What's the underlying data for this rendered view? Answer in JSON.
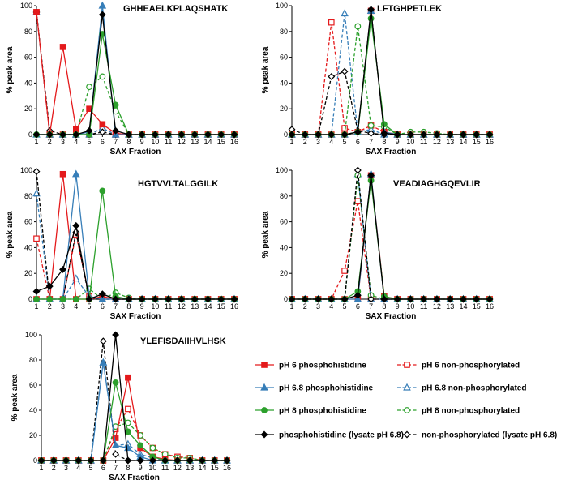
{
  "styles": {
    "ph6_phos": {
      "color": "#e41a1c",
      "marker": "square",
      "filled": true,
      "dashed": false
    },
    "ph68_phos": {
      "color": "#377eb8",
      "marker": "triangle",
      "filled": true,
      "dashed": false
    },
    "ph8_phos": {
      "color": "#2ca02c",
      "marker": "circle",
      "filled": true,
      "dashed": false
    },
    "lys_phos": {
      "color": "#000000",
      "marker": "diamond",
      "filled": true,
      "dashed": false
    },
    "ph6_non": {
      "color": "#e41a1c",
      "marker": "square",
      "filled": false,
      "dashed": true
    },
    "ph68_non": {
      "color": "#377eb8",
      "marker": "triangle",
      "filled": false,
      "dashed": true
    },
    "ph8_non": {
      "color": "#2ca02c",
      "marker": "circle",
      "filled": false,
      "dashed": true
    },
    "lys_non": {
      "color": "#000000",
      "marker": "diamond",
      "filled": false,
      "dashed": true
    }
  },
  "legend": [
    {
      "key": "ph6_phos",
      "label": "pH 6 phosphohistidine"
    },
    {
      "key": "ph6_non",
      "label": "pH 6 non-phosphorylated"
    },
    {
      "key": "ph68_phos",
      "label": "pH 6.8 phosphohistidine"
    },
    {
      "key": "ph68_non",
      "label": "pH 6.8 non-phosphorylated"
    },
    {
      "key": "ph8_phos",
      "label": "pH 8 phosphohistidine"
    },
    {
      "key": "ph8_non",
      "label": "pH 8 non-phosphorylated"
    },
    {
      "key": "lys_phos",
      "label": "phosphohistidine (lysate pH 6.8)"
    },
    {
      "key": "lys_non",
      "label": "non-phosphorylated (lysate pH 6.8)"
    }
  ],
  "chart_data": [
    {
      "type": "line",
      "title": "GHHEAELKPLAQSHATK",
      "xlabel": "SAX Fraction",
      "ylabel": "% peak area",
      "x": [
        "1",
        "2",
        "3",
        "4",
        "5",
        "6",
        "7",
        "8",
        "9",
        "10",
        "11",
        "12",
        "13",
        "14",
        "15",
        "16"
      ],
      "ylim": [
        0,
        100
      ],
      "yticks": [
        "0",
        "20",
        "40",
        "60",
        "80",
        "100"
      ],
      "series": [
        {
          "key": "ph6_non",
          "name": "pH 6 non-phosphorylated",
          "values": [
            95,
            0,
            0,
            0,
            0,
            5,
            0,
            0,
            0,
            0,
            0,
            0,
            0,
            0,
            0,
            0
          ]
        },
        {
          "key": "ph68_non",
          "name": "pH 6.8 non-phosphorylated",
          "values": [
            95,
            0,
            0,
            0,
            0,
            5,
            0,
            0,
            0,
            0,
            0,
            0,
            0,
            0,
            0,
            0
          ]
        },
        {
          "key": "ph8_non",
          "name": "pH 8 non-phosphorylated",
          "values": [
            0,
            0,
            0,
            0,
            37,
            45,
            18,
            0,
            0,
            0,
            0,
            0,
            0,
            0,
            0,
            0
          ]
        },
        {
          "key": "lys_non",
          "name": "non-phosphorylated (lysate pH 6.8)",
          "values": [
            95,
            3,
            0,
            0,
            0,
            2,
            0,
            0,
            0,
            0,
            0,
            0,
            0,
            0,
            0,
            0
          ]
        },
        {
          "key": "ph6_phos",
          "name": "pH 6 phosphohistidine",
          "values": [
            95,
            0,
            68,
            4,
            20,
            8,
            1,
            0,
            0,
            0,
            0,
            0,
            0,
            0,
            0,
            0
          ]
        },
        {
          "key": "ph68_phos",
          "name": "pH 6.8 phosphohistidine",
          "values": [
            0,
            0,
            0,
            0,
            2,
            100,
            0,
            0,
            0,
            0,
            0,
            0,
            0,
            0,
            0,
            0
          ]
        },
        {
          "key": "ph8_phos",
          "name": "pH 8 phosphohistidine",
          "values": [
            0,
            0,
            0,
            0,
            0,
            78,
            23,
            0,
            0,
            0,
            0,
            0,
            0,
            0,
            0,
            0
          ]
        },
        {
          "key": "lys_phos",
          "name": "phosphohistidine (lysate pH 6.8)",
          "values": [
            0,
            0,
            0,
            0,
            3,
            93,
            3,
            0,
            0,
            0,
            0,
            0,
            0,
            0,
            0,
            0
          ]
        }
      ]
    },
    {
      "type": "line",
      "title": "LFTGHPETLEK",
      "xlabel": "SAX Fraction",
      "ylabel": "% peak area",
      "x": [
        "1",
        "2",
        "3",
        "4",
        "5",
        "6",
        "7",
        "8",
        "9",
        "10",
        "11",
        "12",
        "13",
        "14",
        "15",
        "16"
      ],
      "ylim": [
        0,
        100
      ],
      "yticks": [
        "0",
        "20",
        "40",
        "60",
        "80",
        "100"
      ],
      "series": [
        {
          "key": "ph6_non",
          "name": "pH 6 non-phosphorylated",
          "values": [
            0,
            0,
            0,
            87,
            5,
            2,
            7,
            2,
            0,
            0,
            0,
            0,
            0,
            0,
            0,
            0
          ]
        },
        {
          "key": "ph68_non",
          "name": "pH 6.8 non-phosphorylated",
          "values": [
            0,
            0,
            0,
            0,
            94,
            2,
            4,
            0,
            0,
            0,
            0,
            0,
            0,
            0,
            0,
            0
          ]
        },
        {
          "key": "ph8_non",
          "name": "pH 8 non-phosphorylated",
          "values": [
            0,
            0,
            0,
            0,
            0,
            84,
            7,
            6,
            0,
            2,
            2,
            1,
            0,
            0,
            0,
            0
          ]
        },
        {
          "key": "lys_non",
          "name": "non-phosphorylated (lysate pH 6.8)",
          "values": [
            4,
            0,
            0,
            45,
            49,
            3,
            1,
            0,
            0,
            0,
            0,
            0,
            0,
            0,
            0,
            0
          ]
        },
        {
          "key": "ph6_phos",
          "name": "pH 6 phosphohistidine",
          "values": [
            0,
            0,
            0,
            0,
            0,
            2,
            96,
            2,
            0,
            0,
            0,
            0,
            0,
            0,
            0,
            0
          ]
        },
        {
          "key": "ph68_phos",
          "name": "pH 6.8 phosphohistidine",
          "values": [
            0,
            0,
            0,
            0,
            0,
            2,
            96,
            2,
            0,
            0,
            0,
            0,
            0,
            0,
            0,
            0
          ]
        },
        {
          "key": "ph8_phos",
          "name": "pH 8 phosphohistidine",
          "values": [
            0,
            0,
            0,
            0,
            0,
            2,
            90,
            8,
            0,
            0,
            0,
            0,
            0,
            0,
            0,
            0
          ]
        },
        {
          "key": "lys_phos",
          "name": "phosphohistidine (lysate pH 6.8)",
          "values": [
            0,
            0,
            0,
            0,
            0,
            2,
            97,
            1,
            0,
            0,
            0,
            0,
            0,
            0,
            0,
            0
          ]
        }
      ]
    },
    {
      "type": "line",
      "title": "HGTVVLTALGGILK",
      "xlabel": "SAX Fraction",
      "ylabel": "% peak area",
      "x": [
        "1",
        "2",
        "3",
        "4",
        "5",
        "6",
        "7",
        "8",
        "9",
        "10",
        "11",
        "12",
        "13",
        "14",
        "15",
        "16"
      ],
      "ylim": [
        0,
        100
      ],
      "yticks": [
        "0",
        "20",
        "40",
        "60",
        "80",
        "100"
      ],
      "series": [
        {
          "key": "ph6_non",
          "name": "pH 6 non-phosphorylated",
          "values": [
            47,
            0,
            0,
            50,
            2,
            0,
            0,
            0,
            0,
            0,
            0,
            0,
            0,
            0,
            0,
            0
          ]
        },
        {
          "key": "ph68_non",
          "name": "pH 6.8 non-phosphorylated",
          "values": [
            82,
            0,
            0,
            16,
            2,
            0,
            0,
            0,
            0,
            0,
            0,
            0,
            0,
            0,
            0,
            0
          ]
        },
        {
          "key": "ph8_non",
          "name": "pH 8 non-phosphorylated",
          "values": [
            0,
            0,
            0,
            0,
            8,
            0,
            5,
            1,
            0,
            0,
            0,
            0,
            0,
            0,
            0,
            0
          ]
        },
        {
          "key": "lys_non",
          "name": "non-phosphorylated (lysate pH 6.8)",
          "values": [
            99,
            0,
            0,
            52,
            0,
            0,
            0,
            0,
            0,
            0,
            0,
            0,
            0,
            0,
            0,
            0
          ]
        },
        {
          "key": "ph6_phos",
          "name": "pH 6 phosphohistidine",
          "values": [
            0,
            0,
            97,
            0,
            0,
            2,
            0,
            0,
            0,
            0,
            0,
            0,
            0,
            0,
            0,
            0
          ]
        },
        {
          "key": "ph68_phos",
          "name": "pH 6.8 phosphohistidine",
          "values": [
            0,
            0,
            0,
            97,
            2,
            0,
            0,
            0,
            0,
            0,
            0,
            0,
            0,
            0,
            0,
            0
          ]
        },
        {
          "key": "ph8_phos",
          "name": "pH 8 phosphohistidine",
          "values": [
            0,
            0,
            0,
            0,
            0,
            84,
            2,
            0,
            0,
            0,
            0,
            0,
            0,
            0,
            0,
            0
          ]
        },
        {
          "key": "lys_phos",
          "name": "phosphohistidine (lysate pH 6.8)",
          "values": [
            6,
            10,
            23,
            57,
            0,
            4,
            0,
            0,
            0,
            0,
            0,
            0,
            0,
            0,
            0,
            0
          ]
        }
      ]
    },
    {
      "type": "line",
      "title": "VEADIAGHGQEVLIR",
      "xlabel": "SAX Fraction",
      "ylabel": "% peak area",
      "x": [
        "1",
        "2",
        "3",
        "4",
        "5",
        "6",
        "7",
        "8",
        "9",
        "10",
        "11",
        "12",
        "13",
        "14",
        "15",
        "16"
      ],
      "ylim": [
        0,
        100
      ],
      "yticks": [
        "0",
        "20",
        "40",
        "60",
        "80",
        "100"
      ],
      "series": [
        {
          "key": "ph6_non",
          "name": "pH 6 non-phosphorylated",
          "values": [
            0,
            0,
            0,
            0,
            22,
            76,
            0,
            0,
            0,
            0,
            0,
            0,
            0,
            0,
            0,
            0
          ]
        },
        {
          "key": "ph68_non",
          "name": "pH 6.8 non-phosphorylated",
          "values": [
            0,
            0,
            0,
            0,
            0,
            97,
            0,
            0,
            0,
            0,
            0,
            0,
            0,
            0,
            0,
            0
          ]
        },
        {
          "key": "ph8_non",
          "name": "pH 8 non-phosphorylated",
          "values": [
            0,
            0,
            0,
            0,
            0,
            96,
            3,
            0,
            0,
            0,
            0,
            0,
            0,
            0,
            0,
            0
          ]
        },
        {
          "key": "lys_non",
          "name": "non-phosphorylated (lysate pH 6.8)",
          "values": [
            0,
            0,
            0,
            0,
            0,
            100,
            0,
            0,
            0,
            0,
            0,
            0,
            0,
            0,
            0,
            0
          ]
        },
        {
          "key": "ph6_phos",
          "name": "pH 6 phosphohistidine",
          "values": [
            0,
            0,
            0,
            0,
            0,
            0,
            96,
            2,
            0,
            0,
            0,
            0,
            0,
            0,
            0,
            0
          ]
        },
        {
          "key": "ph68_phos",
          "name": "pH 6.8 phosphohistidine",
          "values": [
            0,
            0,
            0,
            0,
            0,
            0,
            97,
            0,
            0,
            0,
            0,
            0,
            0,
            0,
            0,
            0
          ]
        },
        {
          "key": "ph8_phos",
          "name": "pH 8 phosphohistidine",
          "values": [
            0,
            0,
            0,
            0,
            0,
            6,
            92,
            2,
            0,
            0,
            0,
            0,
            0,
            0,
            0,
            0
          ]
        },
        {
          "key": "lys_phos",
          "name": "phosphohistidine (lysate pH 6.8)",
          "values": [
            0,
            0,
            0,
            0,
            0,
            3,
            96,
            0,
            0,
            0,
            0,
            0,
            0,
            0,
            0,
            0
          ]
        }
      ]
    },
    {
      "type": "line",
      "title": "YLEFISDAIIHVLHSK",
      "xlabel": "SAX Fraction",
      "ylabel": "% peak area",
      "x": [
        "1",
        "2",
        "3",
        "4",
        "5",
        "6",
        "7",
        "8",
        "9",
        "10",
        "11",
        "12",
        "13",
        "14",
        "15",
        "16"
      ],
      "ylim": [
        0,
        100
      ],
      "yticks": [
        "0",
        "20",
        "40",
        "60",
        "80",
        "100"
      ],
      "series": [
        {
          "key": "ph6_non",
          "name": "pH 6 non-phosphorylated",
          "values": [
            0,
            0,
            0,
            0,
            0,
            0,
            25,
            41,
            20,
            10,
            5,
            3,
            2,
            0,
            0,
            0
          ]
        },
        {
          "key": "ph68_non",
          "name": "pH 6.8 non-phosphorylated",
          "values": [
            0,
            0,
            0,
            0,
            0,
            78,
            12,
            13,
            5,
            2,
            0,
            0,
            0,
            0,
            0,
            0
          ]
        },
        {
          "key": "ph8_non",
          "name": "pH 8 non-phosphorylated",
          "values": [
            0,
            0,
            0,
            0,
            0,
            0,
            27,
            30,
            20,
            10,
            5,
            2,
            2,
            0,
            0,
            0
          ]
        },
        {
          "key": "lys_non",
          "name": "non-phosphorylated (lysate pH 6.8)",
          "values": [
            0,
            0,
            0,
            0,
            0,
            95,
            5,
            0,
            0,
            0,
            0,
            0,
            0,
            0,
            0,
            0
          ]
        },
        {
          "key": "ph6_phos",
          "name": "pH 6 phosphohistidine",
          "values": [
            0,
            0,
            0,
            0,
            0,
            0,
            18,
            66,
            10,
            3,
            1,
            0,
            0,
            0,
            0,
            0
          ]
        },
        {
          "key": "ph68_phos",
          "name": "pH 6.8 phosphohistidine",
          "values": [
            0,
            0,
            0,
            0,
            0,
            78,
            12,
            10,
            3,
            0,
            0,
            0,
            0,
            0,
            0,
            0
          ]
        },
        {
          "key": "ph8_phos",
          "name": "pH 8 phosphohistidine",
          "values": [
            0,
            0,
            0,
            0,
            0,
            0,
            62,
            23,
            12,
            3,
            0,
            0,
            0,
            0,
            0,
            0
          ]
        },
        {
          "key": "lys_phos",
          "name": "phosphohistidine (lysate pH 6.8)",
          "values": [
            0,
            0,
            0,
            0,
            0,
            0,
            100,
            0,
            0,
            0,
            0,
            0,
            0,
            0,
            0,
            0
          ]
        }
      ]
    }
  ]
}
